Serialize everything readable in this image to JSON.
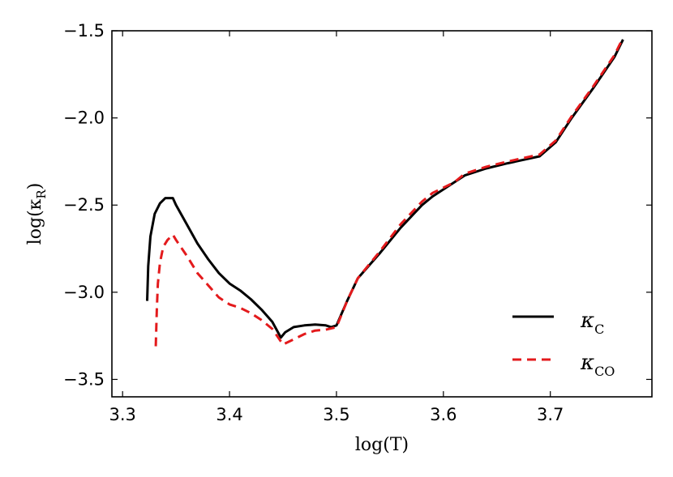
{
  "chart_data": {
    "type": "line",
    "xlabel": "log(T)",
    "ylabel": "log(κ",
    "ylabel_sub": "R",
    "ylabel_close": ")",
    "xlim": [
      3.29,
      3.795
    ],
    "ylim": [
      -3.6,
      -1.5
    ],
    "xticks": [
      3.3,
      3.4,
      3.5,
      3.6,
      3.7
    ],
    "xtick_labels": [
      "3.3",
      "3.4",
      "3.5",
      "3.6",
      "3.7"
    ],
    "yticks": [
      -1.5,
      -2.0,
      -2.5,
      -3.0,
      -3.5
    ],
    "ytick_labels": [
      "−1.5",
      "−2.0",
      "−2.5",
      "−3.0",
      "−3.5"
    ],
    "grid": false,
    "legend_position": "lower-right",
    "series": [
      {
        "name": "κ",
        "name_sub": "C",
        "color": "#000000",
        "style": "solid",
        "x": [
          3.323,
          3.324,
          3.326,
          3.33,
          3.335,
          3.34,
          3.347,
          3.35,
          3.36,
          3.37,
          3.38,
          3.39,
          3.4,
          3.41,
          3.42,
          3.43,
          3.44,
          3.448,
          3.452,
          3.46,
          3.47,
          3.48,
          3.49,
          3.495,
          3.5,
          3.51,
          3.52,
          3.54,
          3.56,
          3.58,
          3.59,
          3.61,
          3.62,
          3.64,
          3.66,
          3.69,
          3.705,
          3.72,
          3.74,
          3.76,
          3.768
        ],
        "y": [
          -3.05,
          -2.85,
          -2.68,
          -2.55,
          -2.49,
          -2.46,
          -2.46,
          -2.5,
          -2.61,
          -2.72,
          -2.81,
          -2.89,
          -2.95,
          -2.99,
          -3.04,
          -3.1,
          -3.17,
          -3.26,
          -3.23,
          -3.2,
          -3.19,
          -3.185,
          -3.19,
          -3.2,
          -3.19,
          -3.05,
          -2.92,
          -2.78,
          -2.63,
          -2.5,
          -2.45,
          -2.37,
          -2.33,
          -2.29,
          -2.26,
          -2.22,
          -2.14,
          -2.0,
          -1.83,
          -1.65,
          -1.55
        ]
      },
      {
        "name": "κ",
        "name_sub": "CO",
        "color": "#e31a1c",
        "style": "dashed",
        "x": [
          3.331,
          3.332,
          3.333,
          3.335,
          3.338,
          3.342,
          3.347,
          3.35,
          3.36,
          3.37,
          3.38,
          3.39,
          3.4,
          3.41,
          3.42,
          3.43,
          3.44,
          3.45,
          3.46,
          3.47,
          3.48,
          3.49,
          3.5,
          3.51,
          3.52,
          3.54,
          3.56,
          3.58,
          3.59,
          3.61,
          3.62,
          3.64,
          3.66,
          3.69,
          3.705,
          3.72,
          3.74,
          3.76,
          3.768
        ],
        "y": [
          -3.31,
          -3.1,
          -2.95,
          -2.83,
          -2.74,
          -2.7,
          -2.67,
          -2.7,
          -2.79,
          -2.89,
          -2.96,
          -3.03,
          -3.07,
          -3.09,
          -3.12,
          -3.16,
          -3.21,
          -3.3,
          -3.27,
          -3.24,
          -3.22,
          -3.215,
          -3.2,
          -3.05,
          -2.92,
          -2.77,
          -2.61,
          -2.48,
          -2.43,
          -2.37,
          -2.32,
          -2.28,
          -2.25,
          -2.21,
          -2.13,
          -1.99,
          -1.82,
          -1.64,
          -1.54
        ]
      }
    ]
  }
}
